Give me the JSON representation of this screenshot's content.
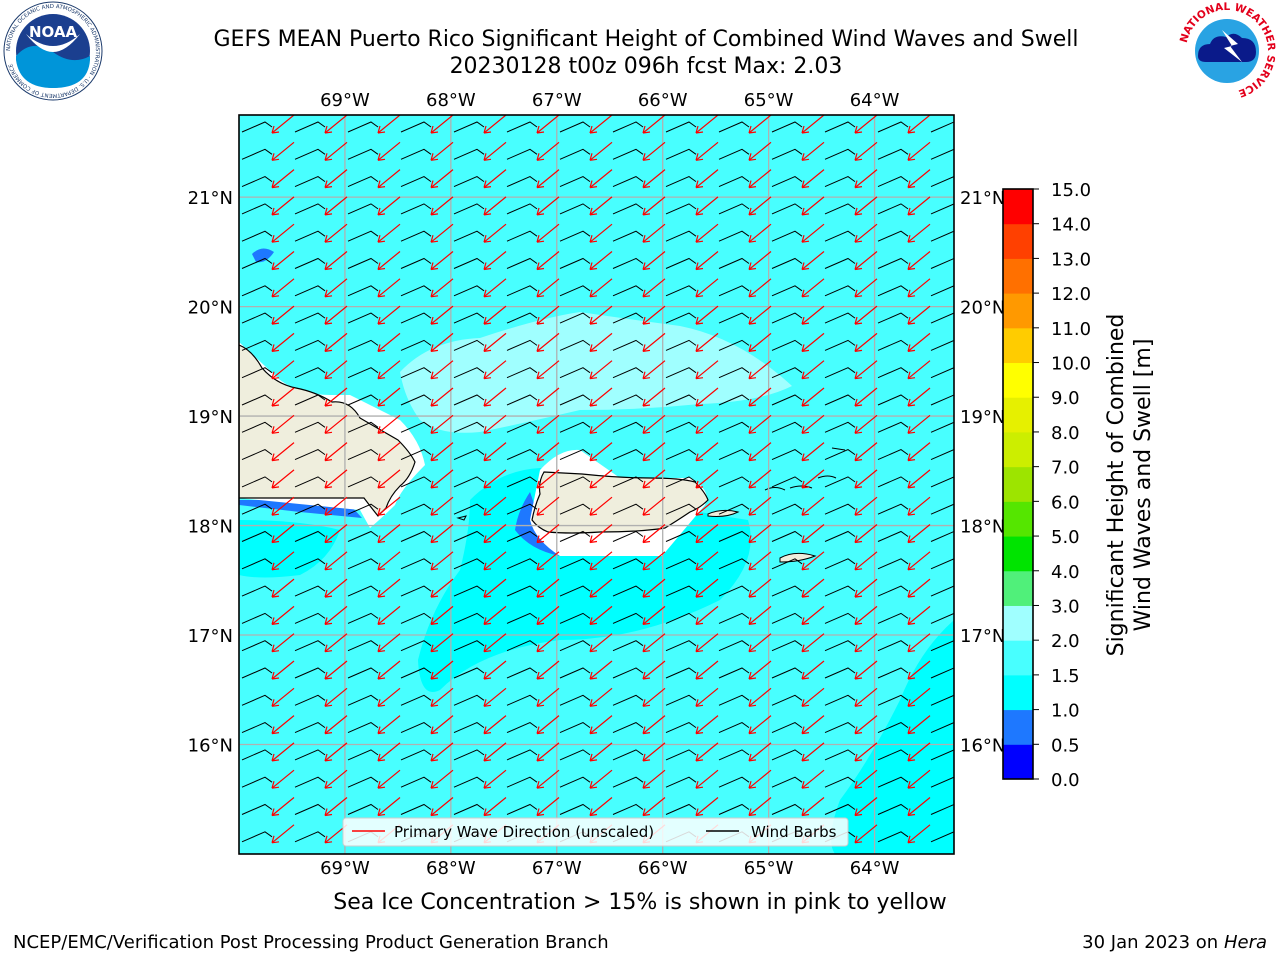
{
  "header": {
    "title_line1": "GEFS MEAN Puerto Rico Significant Height of Combined Wind Waves and Swell",
    "title_line2": "20230128 t00z 096h fcst   Max: 2.03"
  },
  "logos": {
    "left_text": "NOAA",
    "left_ring_text": "NATIONAL OCEANIC AND ATMOSPHERIC ADMINISTRATION · U.S. DEPARTMENT OF COMMERCE",
    "right_ring_text": "NATIONAL WEATHER SERVICE"
  },
  "chart_data": {
    "type": "heatmap",
    "title": "GEFS MEAN Puerto Rico Significant Height of Combined Wind Waves and Swell",
    "subtitle": "20230128 t00z 096h fcst   Max: 2.03",
    "max_value": 2.03,
    "lon_range": [
      -70.0,
      -63.25
    ],
    "lat_range": [
      15.0,
      21.75
    ],
    "lon_ticks": [
      -69,
      -68,
      -67,
      -66,
      -65,
      -64
    ],
    "lon_tick_labels": [
      "69°W",
      "68°W",
      "67°W",
      "66°W",
      "65°W",
      "64°W"
    ],
    "lat_ticks": [
      16,
      17,
      18,
      19,
      20,
      21
    ],
    "lat_tick_labels": [
      "16°N",
      "17°N",
      "18°N",
      "19°N",
      "20°N",
      "21°N"
    ],
    "grid": true,
    "colorbar": {
      "label_line1": "Significant Height of Combined",
      "label_line2": "Wind Waves and Swell [m]",
      "levels": [
        0.0,
        0.5,
        1.0,
        1.5,
        2.0,
        3.0,
        4.0,
        5.0,
        6.0,
        7.0,
        8.0,
        9.0,
        10.0,
        11.0,
        12.0,
        13.0,
        14.0,
        15.0
      ],
      "tick_labels": [
        "0.0",
        "0.5",
        "1.0",
        "1.5",
        "2.0",
        "3.0",
        "4.0",
        "5.0",
        "6.0",
        "7.0",
        "8.0",
        "9.0",
        "10.0",
        "11.0",
        "12.0",
        "13.0",
        "14.0",
        "15.0"
      ],
      "colors": [
        "#0000ff",
        "#1e78ff",
        "#00ffff",
        "#48ffff",
        "#a0ffff",
        "#50f07a",
        "#00e400",
        "#55e600",
        "#9de400",
        "#ccee00",
        "#e6f000",
        "#ffff00",
        "#ffcc00",
        "#ff9900",
        "#ff7000",
        "#ff4000",
        "#ff0000"
      ]
    },
    "legend": {
      "placement": "lower center",
      "entries": [
        {
          "label": "Primary Wave Direction (unscaled)",
          "color": "#ff0000"
        },
        {
          "label": "Wind Barbs",
          "color": "#000000"
        }
      ]
    },
    "field_summary": {
      "dominant_range": "1.5–2.0",
      "higher_range_region": "north of Hispaniola and Puerto Rico, 18.7°N–19.9°N, 68.5°W–64.9°W",
      "lower_range_regions": "south of Puerto Rico and southeast corner, 1.0–1.5",
      "lowest_range_regions": "lee of western Puerto Rico and south coast of Hispaniola, 0.5–1.0"
    },
    "primary_wave_direction": "waves propagating toward the southwest",
    "wind_barbs": "easterly to northeasterly wind barbs on a regular grid"
  },
  "caption": "Sea Ice Concentration > 15% is shown in pink to yellow",
  "footer": {
    "left": "NCEP/EMC/Verification Post Processing Product Generation Branch",
    "right_date": "30 Jan 2023 on ",
    "right_host": "Hera"
  }
}
